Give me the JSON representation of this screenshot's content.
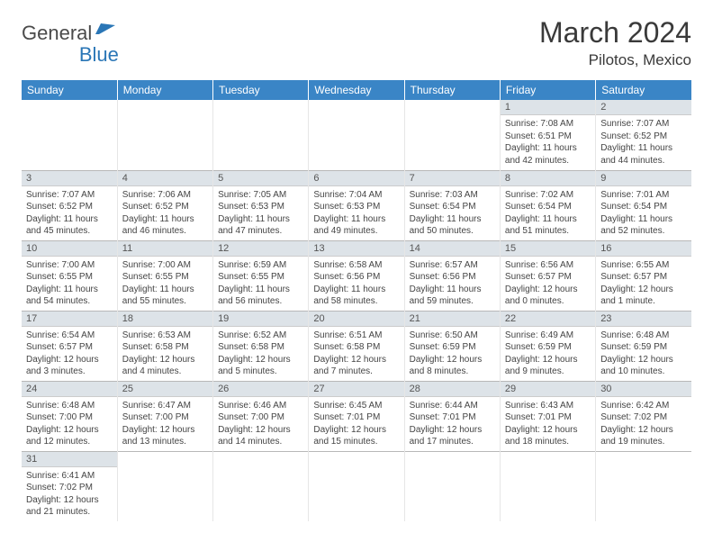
{
  "logo": {
    "part1": "General",
    "part2": "Blue"
  },
  "title": "March 2024",
  "location": "Pilotos, Mexico",
  "colors": {
    "header_bg": "#3a85c6",
    "header_text": "#ffffff",
    "daynum_bg": "#dde3e8",
    "border": "#e6e6e6",
    "row_border": "#b8b8b8"
  },
  "weekdays": [
    "Sunday",
    "Monday",
    "Tuesday",
    "Wednesday",
    "Thursday",
    "Friday",
    "Saturday"
  ],
  "weeks": [
    [
      null,
      null,
      null,
      null,
      null,
      {
        "n": "1",
        "sr": "Sunrise: 7:08 AM",
        "ss": "Sunset: 6:51 PM",
        "dl": "Daylight: 11 hours and 42 minutes."
      },
      {
        "n": "2",
        "sr": "Sunrise: 7:07 AM",
        "ss": "Sunset: 6:52 PM",
        "dl": "Daylight: 11 hours and 44 minutes."
      }
    ],
    [
      {
        "n": "3",
        "sr": "Sunrise: 7:07 AM",
        "ss": "Sunset: 6:52 PM",
        "dl": "Daylight: 11 hours and 45 minutes."
      },
      {
        "n": "4",
        "sr": "Sunrise: 7:06 AM",
        "ss": "Sunset: 6:52 PM",
        "dl": "Daylight: 11 hours and 46 minutes."
      },
      {
        "n": "5",
        "sr": "Sunrise: 7:05 AM",
        "ss": "Sunset: 6:53 PM",
        "dl": "Daylight: 11 hours and 47 minutes."
      },
      {
        "n": "6",
        "sr": "Sunrise: 7:04 AM",
        "ss": "Sunset: 6:53 PM",
        "dl": "Daylight: 11 hours and 49 minutes."
      },
      {
        "n": "7",
        "sr": "Sunrise: 7:03 AM",
        "ss": "Sunset: 6:54 PM",
        "dl": "Daylight: 11 hours and 50 minutes."
      },
      {
        "n": "8",
        "sr": "Sunrise: 7:02 AM",
        "ss": "Sunset: 6:54 PM",
        "dl": "Daylight: 11 hours and 51 minutes."
      },
      {
        "n": "9",
        "sr": "Sunrise: 7:01 AM",
        "ss": "Sunset: 6:54 PM",
        "dl": "Daylight: 11 hours and 52 minutes."
      }
    ],
    [
      {
        "n": "10",
        "sr": "Sunrise: 7:00 AM",
        "ss": "Sunset: 6:55 PM",
        "dl": "Daylight: 11 hours and 54 minutes."
      },
      {
        "n": "11",
        "sr": "Sunrise: 7:00 AM",
        "ss": "Sunset: 6:55 PM",
        "dl": "Daylight: 11 hours and 55 minutes."
      },
      {
        "n": "12",
        "sr": "Sunrise: 6:59 AM",
        "ss": "Sunset: 6:55 PM",
        "dl": "Daylight: 11 hours and 56 minutes."
      },
      {
        "n": "13",
        "sr": "Sunrise: 6:58 AM",
        "ss": "Sunset: 6:56 PM",
        "dl": "Daylight: 11 hours and 58 minutes."
      },
      {
        "n": "14",
        "sr": "Sunrise: 6:57 AM",
        "ss": "Sunset: 6:56 PM",
        "dl": "Daylight: 11 hours and 59 minutes."
      },
      {
        "n": "15",
        "sr": "Sunrise: 6:56 AM",
        "ss": "Sunset: 6:57 PM",
        "dl": "Daylight: 12 hours and 0 minutes."
      },
      {
        "n": "16",
        "sr": "Sunrise: 6:55 AM",
        "ss": "Sunset: 6:57 PM",
        "dl": "Daylight: 12 hours and 1 minute."
      }
    ],
    [
      {
        "n": "17",
        "sr": "Sunrise: 6:54 AM",
        "ss": "Sunset: 6:57 PM",
        "dl": "Daylight: 12 hours and 3 minutes."
      },
      {
        "n": "18",
        "sr": "Sunrise: 6:53 AM",
        "ss": "Sunset: 6:58 PM",
        "dl": "Daylight: 12 hours and 4 minutes."
      },
      {
        "n": "19",
        "sr": "Sunrise: 6:52 AM",
        "ss": "Sunset: 6:58 PM",
        "dl": "Daylight: 12 hours and 5 minutes."
      },
      {
        "n": "20",
        "sr": "Sunrise: 6:51 AM",
        "ss": "Sunset: 6:58 PM",
        "dl": "Daylight: 12 hours and 7 minutes."
      },
      {
        "n": "21",
        "sr": "Sunrise: 6:50 AM",
        "ss": "Sunset: 6:59 PM",
        "dl": "Daylight: 12 hours and 8 minutes."
      },
      {
        "n": "22",
        "sr": "Sunrise: 6:49 AM",
        "ss": "Sunset: 6:59 PM",
        "dl": "Daylight: 12 hours and 9 minutes."
      },
      {
        "n": "23",
        "sr": "Sunrise: 6:48 AM",
        "ss": "Sunset: 6:59 PM",
        "dl": "Daylight: 12 hours and 10 minutes."
      }
    ],
    [
      {
        "n": "24",
        "sr": "Sunrise: 6:48 AM",
        "ss": "Sunset: 7:00 PM",
        "dl": "Daylight: 12 hours and 12 minutes."
      },
      {
        "n": "25",
        "sr": "Sunrise: 6:47 AM",
        "ss": "Sunset: 7:00 PM",
        "dl": "Daylight: 12 hours and 13 minutes."
      },
      {
        "n": "26",
        "sr": "Sunrise: 6:46 AM",
        "ss": "Sunset: 7:00 PM",
        "dl": "Daylight: 12 hours and 14 minutes."
      },
      {
        "n": "27",
        "sr": "Sunrise: 6:45 AM",
        "ss": "Sunset: 7:01 PM",
        "dl": "Daylight: 12 hours and 15 minutes."
      },
      {
        "n": "28",
        "sr": "Sunrise: 6:44 AM",
        "ss": "Sunset: 7:01 PM",
        "dl": "Daylight: 12 hours and 17 minutes."
      },
      {
        "n": "29",
        "sr": "Sunrise: 6:43 AM",
        "ss": "Sunset: 7:01 PM",
        "dl": "Daylight: 12 hours and 18 minutes."
      },
      {
        "n": "30",
        "sr": "Sunrise: 6:42 AM",
        "ss": "Sunset: 7:02 PM",
        "dl": "Daylight: 12 hours and 19 minutes."
      }
    ],
    [
      {
        "n": "31",
        "sr": "Sunrise: 6:41 AM",
        "ss": "Sunset: 7:02 PM",
        "dl": "Daylight: 12 hours and 21 minutes."
      },
      null,
      null,
      null,
      null,
      null,
      null
    ]
  ]
}
